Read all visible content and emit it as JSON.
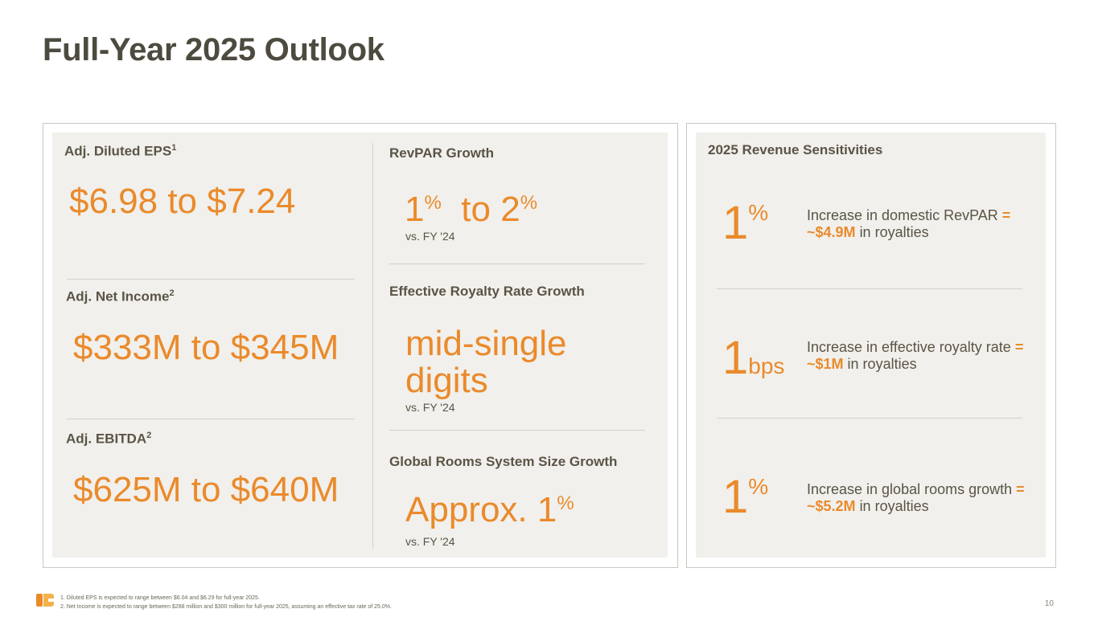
{
  "title": "Full-Year 2025 Outlook",
  "left": {
    "eps": {
      "label": "Adj. Diluted EPS",
      "sup": "1",
      "value": "$6.98 to $7.24"
    },
    "net_income": {
      "label": "Adj. Net Income",
      "sup": "2",
      "value": "$333M to $345M"
    },
    "ebitda": {
      "label": "Adj. EBITDA",
      "sup": "2",
      "value": "$625M to $640M"
    }
  },
  "middle": {
    "revpar": {
      "label": "RevPAR Growth",
      "low": "1",
      "low_unit": "%",
      "to": "to",
      "high": "2",
      "high_unit": "%",
      "vs": "vs. FY '24"
    },
    "royalty": {
      "label": "Effective Royalty Rate Growth",
      "value_line1": "mid-single",
      "value_line2": "digits",
      "vs": "vs. FY '24"
    },
    "rooms": {
      "label": "Global Rooms System Size Growth",
      "value": "Approx. 1",
      "unit": "%",
      "vs": "vs. FY '24"
    }
  },
  "sensitivities": {
    "title": "2025 Revenue Sensitivities",
    "items": [
      {
        "num": "1",
        "unit": "%",
        "text": "Increase in domestic RevPAR",
        "highlight": "= ~$4.9M",
        "suffix": "in royalties"
      },
      {
        "num": "1",
        "unit": "bps",
        "text": "Increase in effective royalty rate",
        "highlight": "= ~$1M",
        "suffix": "in royalties"
      },
      {
        "num": "1",
        "unit": "%",
        "text": "Increase in global rooms growth",
        "highlight": "= ~$5.2M",
        "suffix": "in royalties"
      }
    ]
  },
  "footnotes": [
    "1.   Diluted EPS is expected to range between $6.04 and $6.29 for full-year 2025.",
    "2.   Net Income is expected to range between $288 million and $300 million for full-year 2025, assuming an effective tax rate of 25.0%."
  ],
  "page_number": "10",
  "colors": {
    "accent": "#ea8a2b",
    "title": "#4d4a3f",
    "panel": "#f1f0ec"
  }
}
